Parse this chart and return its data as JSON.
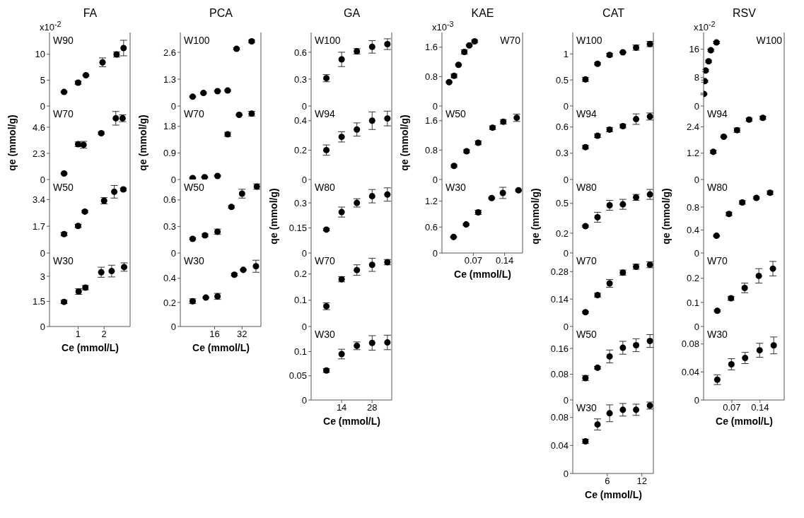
{
  "chart_data": [
    {
      "type": "scatter",
      "title": "FA",
      "annotations": [
        "W90",
        "x10$^{-2}$"
      ],
      "color": "#000000",
      "marker": "circle",
      "tick_labels": "y",
      "xlim": [
        -0.1,
        3
      ],
      "xticks": [
        1,
        2
      ],
      "ylim": [
        0,
        14.2
      ],
      "yticks": [
        0,
        5,
        10
      ],
      "x": [
        0.46,
        1.0,
        1.3,
        1.94,
        2.48,
        2.75
      ],
      "values": [
        2.72,
        4.5,
        5.94,
        8.44,
        9.96,
        11.2
      ],
      "errors": [
        0.15,
        0.3,
        0.1,
        0.85,
        0.5,
        1.5
      ]
    },
    {
      "type": "scatter",
      "ylabel": "qe (mmol/g)",
      "annotations": [
        "W70"
      ],
      "color": "#000000",
      "marker": "circle",
      "tick_labels": "y",
      "xlim": [
        -0.1,
        3
      ],
      "xticks": [
        1,
        2
      ],
      "ylim": [
        0,
        6.46
      ],
      "yticks": [
        0,
        2.3,
        4.6
      ],
      "x": [
        0.46,
        1.0,
        1.21,
        1.89,
        2.45,
        2.71
      ],
      "values": [
        0.53,
        3.1,
        3.05,
        4.07,
        5.38,
        5.38
      ],
      "errors": [
        0.05,
        0.2,
        0.3,
        0.1,
        0.6,
        0.3
      ]
    },
    {
      "type": "scatter",
      "annotations": [
        "W50"
      ],
      "color": "#000000",
      "marker": "circle",
      "tick_labels": "y",
      "xlim": [
        -0.1,
        3
      ],
      "xticks": [
        1,
        2
      ],
      "ylim": [
        0,
        4.67
      ],
      "yticks": [
        0,
        1.7,
        3.4
      ],
      "x": [
        0.46,
        1.0,
        1.26,
        2.0,
        2.39,
        2.74
      ],
      "values": [
        1.2,
        1.72,
        2.63,
        3.32,
        3.89,
        4.04
      ],
      "errors": [
        0.1,
        0.1,
        0.07,
        0.2,
        0.4,
        0.08
      ]
    },
    {
      "type": "scatter",
      "annotations": [
        "W30"
      ],
      "xlabel": "Ce (mmol/L)",
      "color": "#000000",
      "marker": "circle",
      "xlim": [
        -0.1,
        3
      ],
      "xticks": [
        1,
        2
      ],
      "ylim": [
        0,
        4.39
      ],
      "yticks": [
        0,
        1.5,
        3
      ],
      "x": [
        0.46,
        1.02,
        1.28,
        1.89,
        2.29,
        2.77
      ],
      "values": [
        1.47,
        2.09,
        2.32,
        3.24,
        3.31,
        3.55
      ],
      "errors": [
        0.1,
        0.17,
        0.13,
        0.3,
        0.35,
        0.25
      ]
    },
    {
      "type": "scatter",
      "title": "PCA",
      "annotations": [
        "W100"
      ],
      "color": "#000000",
      "marker": "circle",
      "tick_labels": "y",
      "xlim": [
        -4,
        43
      ],
      "xticks": [
        16,
        32
      ],
      "ylim": [
        0,
        3.56
      ],
      "yticks": [
        0,
        1.3,
        2.6
      ],
      "x": [
        3.2,
        9.5,
        17.7,
        23.6,
        28.8,
        37.6
      ],
      "values": [
        0.45,
        0.63,
        0.72,
        0.75,
        2.77,
        3.13
      ],
      "errors": [
        0.03,
        0.04,
        0.03,
        0.03,
        0.05,
        0.06
      ]
    },
    {
      "type": "scatter",
      "ylabel": "qe (mmol/g)",
      "annotations": [
        "W70"
      ],
      "color": "#000000",
      "marker": "circle",
      "tick_labels": "y",
      "xlim": [
        -4,
        43
      ],
      "xticks": [
        16,
        32
      ],
      "ylim": [
        0,
        2.49
      ],
      "yticks": [
        0,
        0.9,
        1.8
      ],
      "x": [
        3.2,
        10.2,
        17.7,
        23.6,
        30.3,
        37.6
      ],
      "values": [
        0.05,
        0.08,
        0.12,
        1.53,
        2.19,
        2.23
      ],
      "errors": [
        0.02,
        0.02,
        0.02,
        0.07,
        0.02,
        0.08
      ]
    },
    {
      "type": "scatter",
      "annotations": [
        "W50"
      ],
      "color": "#000000",
      "marker": "circle",
      "tick_labels": "y",
      "xlim": [
        -4,
        43
      ],
      "xticks": [
        16,
        32
      ],
      "ylim": [
        0,
        0.83
      ],
      "yticks": [
        0,
        0.3,
        0.6
      ],
      "x": [
        3.2,
        10.4,
        17.7,
        25.8,
        32.0,
        40.6
      ],
      "values": [
        0.16,
        0.2,
        0.24,
        0.52,
        0.67,
        0.75
      ],
      "errors": [
        0.01,
        0.015,
        0.03,
        0.015,
        0.05,
        0.03
      ]
    },
    {
      "type": "scatter",
      "annotations": [
        "W30"
      ],
      "xlabel": "Ce (mmol/L)",
      "color": "#000000",
      "marker": "circle",
      "xlim": [
        -4,
        43
      ],
      "xticks": [
        16,
        32
      ],
      "ylim": [
        0,
        0.61
      ],
      "yticks": [
        0,
        0.2,
        0.4
      ],
      "x": [
        3.2,
        10.9,
        17.7,
        27.5,
        32.7,
        40.1
      ],
      "values": [
        0.21,
        0.24,
        0.25,
        0.43,
        0.47,
        0.5
      ],
      "errors": [
        0.02,
        0.005,
        0.025,
        0.01,
        0.005,
        0.05
      ]
    },
    {
      "type": "scatter",
      "title": "GA",
      "annotations": [
        "W100"
      ],
      "color": "#000000",
      "marker": "circle",
      "tick_labels": "y",
      "xlim": [
        0,
        37
      ],
      "xticks": [
        14,
        28
      ],
      "ylim": [
        0,
        0.82
      ],
      "yticks": [
        0,
        0.3,
        0.6
      ],
      "x": [
        7,
        14,
        21,
        28,
        35
      ],
      "values": [
        0.31,
        0.52,
        0.61,
        0.66,
        0.69
      ],
      "errors": [
        0.04,
        0.08,
        0.03,
        0.07,
        0.06
      ]
    },
    {
      "type": "scatter",
      "annotations": [
        "W94"
      ],
      "color": "#000000",
      "marker": "circle",
      "tick_labels": "y",
      "xlim": [
        0,
        37
      ],
      "xticks": [
        14,
        28
      ],
      "ylim": [
        0,
        0.5
      ],
      "yticks": [
        0,
        0.2,
        0.4
      ],
      "x": [
        7,
        14,
        21,
        28,
        35
      ],
      "values": [
        0.2,
        0.29,
        0.34,
        0.4,
        0.415
      ],
      "errors": [
        0.035,
        0.035,
        0.045,
        0.06,
        0.05
      ]
    },
    {
      "type": "scatter",
      "ylabel": "qe (mmol/g)",
      "annotations": [
        "W80"
      ],
      "color": "#000000",
      "marker": "circle",
      "tick_labels": "y",
      "xlim": [
        0,
        37
      ],
      "xticks": [
        14,
        28
      ],
      "ylim": [
        0,
        0.44
      ],
      "yticks": [
        0,
        0.15,
        0.3
      ],
      "x": [
        7,
        14,
        21,
        28,
        35
      ],
      "values": [
        0.14,
        0.245,
        0.3,
        0.34,
        0.35
      ],
      "errors": [
        0.007,
        0.03,
        0.025,
        0.04,
        0.04
      ]
    },
    {
      "type": "scatter",
      "annotations": [
        "W70"
      ],
      "color": "#000000",
      "marker": "circle",
      "tick_labels": "y",
      "xlim": [
        0,
        37
      ],
      "xticks": [
        14,
        28
      ],
      "ylim": [
        0,
        0.28
      ],
      "yticks": [
        0,
        0.1,
        0.2
      ],
      "x": [
        7,
        14,
        21,
        28,
        35
      ],
      "values": [
        0.077,
        0.18,
        0.215,
        0.235,
        0.245
      ],
      "errors": [
        0.013,
        0.01,
        0.02,
        0.025,
        0.01
      ]
    },
    {
      "type": "scatter",
      "annotations": [
        "W30"
      ],
      "xlabel": "Ce (mmol/L)",
      "color": "#000000",
      "marker": "circle",
      "xlim": [
        0,
        37
      ],
      "xticks": [
        14,
        28
      ],
      "ylim": [
        0,
        0.152
      ],
      "yticks": [
        0,
        0.05,
        0.1
      ],
      "x": [
        7,
        14,
        21,
        28,
        35
      ],
      "values": [
        0.061,
        0.095,
        0.112,
        0.118,
        0.119
      ],
      "errors": [
        0.004,
        0.01,
        0.008,
        0.015,
        0.015
      ]
    },
    {
      "type": "scatter",
      "title": "KAE",
      "annotations": [
        "W70",
        "x10$^{-3}$"
      ],
      "color": "#000000",
      "marker": "circle",
      "tick_labels": "y",
      "xlim": [
        0,
        0.18
      ],
      "xticks": [
        0.07,
        0.14
      ],
      "ylim": [
        0,
        2.0
      ],
      "yticks": [
        0,
        0.8,
        1.6
      ],
      "x": [
        0.016,
        0.027,
        0.037,
        0.05,
        0.061,
        0.073
      ],
      "values": [
        0.65,
        0.82,
        1.12,
        1.47,
        1.65,
        1.76
      ],
      "errors": [
        0.02,
        0.05,
        0.02,
        0.06,
        0.02,
        0.03
      ]
    },
    {
      "type": "scatter",
      "ylabel": "qe (mmol/g)",
      "annotations": [
        "W50"
      ],
      "color": "#000000",
      "marker": "circle",
      "tick_labels": "y",
      "xlim": [
        0,
        0.18
      ],
      "xticks": [
        0.07,
        0.14
      ],
      "ylim": [
        0,
        2.0
      ],
      "yticks": [
        0,
        0.8,
        1.6
      ],
      "x": [
        0.027,
        0.055,
        0.081,
        0.113,
        0.137,
        0.167
      ],
      "values": [
        0.37,
        0.77,
        1.0,
        1.41,
        1.57,
        1.68
      ],
      "errors": [
        0.03,
        0.04,
        0.05,
        0.05,
        0.06,
        0.1
      ]
    },
    {
      "type": "scatter",
      "annotations": [
        "W30"
      ],
      "xlabel": "Ce (mmol/L)",
      "color": "#000000",
      "marker": "circle",
      "xlim": [
        0,
        0.18
      ],
      "xticks": [
        0.07,
        0.14
      ],
      "ylim": [
        0,
        1.7
      ],
      "yticks": [
        0,
        0.6,
        1.2
      ],
      "x": [
        0.026,
        0.054,
        0.081,
        0.111,
        0.136,
        0.171
      ],
      "values": [
        0.37,
        0.66,
        0.94,
        1.27,
        1.39,
        1.45
      ],
      "errors": [
        0.01,
        0.02,
        0.05,
        0.02,
        0.13,
        0.02
      ]
    },
    {
      "type": "scatter",
      "title": "CAT",
      "annotations": [
        "W100"
      ],
      "color": "#000000",
      "marker": "circle",
      "tick_labels": "y",
      "xlim": [
        0,
        14
      ],
      "xticks": [
        6,
        12
      ],
      "ylim": [
        0,
        1.41
      ],
      "yticks": [
        0,
        0.5,
        1
      ],
      "x": [
        2.2,
        4.3,
        6.4,
        8.7,
        11.0,
        13.4
      ],
      "values": [
        0.51,
        0.81,
        0.98,
        1.03,
        1.12,
        1.19
      ],
      "errors": [
        0.04,
        0.02,
        0.03,
        0.01,
        0.05,
        0.05
      ]
    },
    {
      "type": "scatter",
      "annotations": [
        "W94"
      ],
      "color": "#000000",
      "marker": "circle",
      "tick_labels": "y",
      "xlim": [
        0,
        14
      ],
      "xticks": [
        6,
        12
      ],
      "ylim": [
        0,
        0.84
      ],
      "yticks": [
        0,
        0.3,
        0.6
      ],
      "x": [
        2.2,
        4.3,
        6.4,
        8.7,
        11.0,
        13.4
      ],
      "values": [
        0.37,
        0.5,
        0.57,
        0.61,
        0.69,
        0.72
      ],
      "errors": [
        0.02,
        0.02,
        0.025,
        0.02,
        0.06,
        0.04
      ]
    },
    {
      "type": "scatter",
      "ylabel": "qe (mmol/g)",
      "annotations": [
        "W80"
      ],
      "color": "#000000",
      "marker": "circle",
      "tick_labels": "y",
      "xlim": [
        0,
        14
      ],
      "xticks": [
        6,
        12
      ],
      "ylim": [
        0,
        0.74
      ],
      "yticks": [
        0,
        0.2,
        0.5
      ],
      "x": [
        2.2,
        4.3,
        6.4,
        8.7,
        11.0,
        13.4
      ],
      "values": [
        0.27,
        0.36,
        0.48,
        0.49,
        0.56,
        0.59
      ],
      "errors": [
        0.01,
        0.05,
        0.05,
        0.05,
        0.03,
        0.05
      ]
    },
    {
      "type": "scatter",
      "annotations": [
        "W70"
      ],
      "color": "#000000",
      "marker": "circle",
      "tick_labels": "y",
      "xlim": [
        0,
        14
      ],
      "xticks": [
        6,
        12
      ],
      "ylim": [
        0,
        0.375
      ],
      "yticks": [
        0,
        0.14,
        0.28
      ],
      "x": [
        2.2,
        4.3,
        6.4,
        8.7,
        11.0,
        13.4
      ],
      "values": [
        0.073,
        0.16,
        0.22,
        0.275,
        0.305,
        0.315
      ],
      "errors": [
        0.005,
        0.01,
        0.02,
        0.013,
        0.013,
        0.015
      ]
    },
    {
      "type": "scatter",
      "annotations": [
        "W50"
      ],
      "color": "#000000",
      "marker": "circle",
      "tick_labels": "y",
      "xlim": [
        0,
        14
      ],
      "xticks": [
        6,
        12
      ],
      "ylim": [
        0,
        0.228
      ],
      "yticks": [
        0,
        0.08,
        0.16
      ],
      "x": [
        2.2,
        4.3,
        6.4,
        8.7,
        11.0,
        13.4
      ],
      "values": [
        0.068,
        0.1,
        0.135,
        0.162,
        0.17,
        0.183
      ],
      "errors": [
        0.008,
        0.004,
        0.02,
        0.02,
        0.02,
        0.02
      ]
    },
    {
      "type": "scatter",
      "annotations": [
        "W30"
      ],
      "xlabel": "Ce (mmol/L)",
      "color": "#000000",
      "marker": "circle",
      "xlim": [
        0,
        14
      ],
      "xticks": [
        6,
        12
      ],
      "ylim": [
        0,
        0.105
      ],
      "yticks": [
        0,
        0.04,
        0.08
      ],
      "x": [
        2.2,
        4.3,
        6.4,
        8.7,
        11.0,
        13.4
      ],
      "values": [
        0.046,
        0.07,
        0.086,
        0.091,
        0.091,
        0.097
      ],
      "errors": [
        0.003,
        0.008,
        0.012,
        0.009,
        0.008,
        0.005
      ]
    },
    {
      "type": "scatter",
      "title": "RSV",
      "annotations": [
        "W100",
        "x10$^{-2}$"
      ],
      "color": "#000000",
      "marker": "circle",
      "tick_labels": "y",
      "xlim": [
        0,
        0.2
      ],
      "xticks": [
        0.07,
        0.14
      ],
      "ylim": [
        0,
        20.7
      ],
      "yticks": [
        0,
        8,
        16
      ],
      "x": [
        0.001,
        0.003,
        0.005,
        0.0125,
        0.018,
        0.032
      ],
      "values": [
        3.4,
        7.0,
        10.0,
        12.6,
        15.7,
        17.9
      ],
      "errors": [
        0.2,
        0.3,
        0.3,
        0.3,
        0.3,
        0.3
      ]
    },
    {
      "type": "scatter",
      "annotations": [
        "W94"
      ],
      "color": "#000000",
      "marker": "circle",
      "tick_labels": "y",
      "xlim": [
        0,
        0.2
      ],
      "xticks": [
        0.07,
        0.14
      ],
      "ylim": [
        0,
        3.35
      ],
      "yticks": [
        0,
        1.2,
        2.4
      ],
      "x": [
        0.024,
        0.05,
        0.083,
        0.113,
        0.147
      ],
      "values": [
        1.26,
        1.95,
        2.25,
        2.73,
        2.81
      ],
      "errors": [
        0.07,
        0.03,
        0.1,
        0.07,
        0.07
      ]
    },
    {
      "type": "scatter",
      "ylabel": "qe (mmol/g)",
      "annotations": [
        "W80"
      ],
      "color": "#000000",
      "marker": "circle",
      "tick_labels": "y",
      "xlim": [
        0,
        0.2
      ],
      "xticks": [
        0.07,
        0.14
      ],
      "ylim": [
        0,
        1.28
      ],
      "yticks": [
        0,
        0.4,
        0.8
      ],
      "x": [
        0.032,
        0.063,
        0.096,
        0.131,
        0.165
      ],
      "values": [
        0.3,
        0.68,
        0.88,
        0.96,
        1.05
      ],
      "errors": [
        0.01,
        0.03,
        0.03,
        0.02,
        0.03
      ]
    },
    {
      "type": "scatter",
      "annotations": [
        "W70"
      ],
      "color": "#000000",
      "marker": "circle",
      "tick_labels": "y",
      "xlim": [
        0,
        0.2
      ],
      "xticks": [
        0.07,
        0.14
      ],
      "ylim": [
        0,
        0.305
      ],
      "yticks": [
        0,
        0.1,
        0.2
      ],
      "x": [
        0.034,
        0.068,
        0.102,
        0.137,
        0.172
      ],
      "values": [
        0.065,
        0.117,
        0.16,
        0.21,
        0.24
      ],
      "errors": [
        0.004,
        0.008,
        0.02,
        0.03,
        0.03
      ]
    },
    {
      "type": "scatter",
      "annotations": [
        "W30"
      ],
      "xlabel": "Ce (mmol/L)",
      "color": "#000000",
      "marker": "circle",
      "xlim": [
        0,
        0.2
      ],
      "xticks": [
        0.07,
        0.14
      ],
      "ylim": [
        0,
        0.105
      ],
      "yticks": [
        0,
        0.04,
        0.08
      ],
      "x": [
        0.034,
        0.069,
        0.103,
        0.139,
        0.174
      ],
      "values": [
        0.029,
        0.051,
        0.06,
        0.071,
        0.078
      ],
      "errors": [
        0.007,
        0.008,
        0.008,
        0.01,
        0.012
      ]
    }
  ]
}
